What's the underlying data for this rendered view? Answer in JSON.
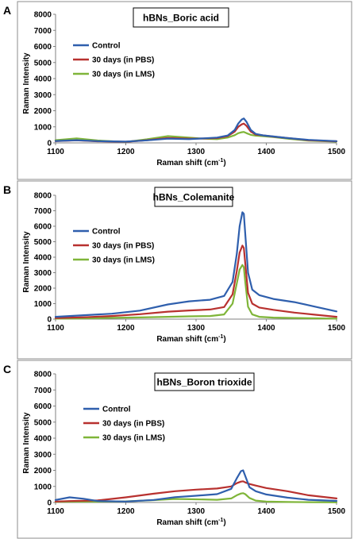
{
  "colors": {
    "control": "#2f5fad",
    "pbs": "#b8312f",
    "lms": "#7fb539",
    "frame": "#8c8c8c"
  },
  "chart_data": [
    {
      "panel": "A",
      "type": "line",
      "title": "hBNs_Boric acid",
      "xlabel": "Raman shift (cm",
      "xlabel_sup": "-1",
      "xlabel_close": ")",
      "ylabel": "Raman Intensity",
      "xlim": [
        1100,
        1500
      ],
      "ylim": [
        0,
        8000
      ],
      "xticks": [
        "1100",
        "1200",
        "1300",
        "1400",
        "1500"
      ],
      "yticks": [
        "0",
        "1000",
        "2000",
        "3000",
        "4000",
        "5000",
        "6000",
        "7000",
        "8000"
      ],
      "legend_position": "upper-left",
      "series": [
        {
          "name": "Control",
          "color_key": "control",
          "x": [
            1100,
            1130,
            1160,
            1200,
            1230,
            1260,
            1290,
            1310,
            1330,
            1345,
            1355,
            1360,
            1365,
            1368,
            1372,
            1378,
            1385,
            1395,
            1410,
            1430,
            1460,
            1500
          ],
          "y": [
            120,
            170,
            110,
            80,
            160,
            260,
            230,
            280,
            330,
            460,
            800,
            1200,
            1450,
            1520,
            1300,
            800,
            560,
            470,
            400,
            300,
            190,
            110
          ]
        },
        {
          "name": "30 days (in PBS)",
          "color_key": "pbs",
          "x": [
            1100,
            1130,
            1160,
            1200,
            1230,
            1260,
            1290,
            1310,
            1330,
            1345,
            1355,
            1360,
            1365,
            1368,
            1372,
            1378,
            1385,
            1395,
            1410,
            1430,
            1460,
            1500
          ],
          "y": [
            110,
            160,
            100,
            70,
            170,
            300,
            260,
            270,
            300,
            420,
            700,
            1000,
            1150,
            1200,
            1050,
            700,
            520,
            470,
            390,
            300,
            170,
            100
          ]
        },
        {
          "name": "30 days (in LMS)",
          "color_key": "lms",
          "x": [
            1100,
            1130,
            1160,
            1200,
            1230,
            1260,
            1290,
            1310,
            1330,
            1345,
            1355,
            1360,
            1365,
            1368,
            1372,
            1378,
            1385,
            1395,
            1410,
            1430,
            1460,
            1500
          ],
          "y": [
            170,
            280,
            150,
            60,
            220,
            420,
            330,
            260,
            230,
            330,
            480,
            600,
            660,
            680,
            600,
            500,
            450,
            420,
            360,
            260,
            140,
            80
          ]
        }
      ]
    },
    {
      "panel": "B",
      "type": "line",
      "title": "hBNs_Colemanite",
      "xlabel": "Raman shift (cm",
      "xlabel_sup": "-1",
      "xlabel_close": ")",
      "ylabel": "Raman Intensity",
      "xlim": [
        1100,
        1500
      ],
      "ylim": [
        0,
        8000
      ],
      "xticks": [
        "1100",
        "1200",
        "1300",
        "1400",
        "1500"
      ],
      "yticks": [
        "0",
        "1000",
        "2000",
        "3000",
        "4000",
        "5000",
        "6000",
        "7000",
        "8000"
      ],
      "legend_position": "upper-left",
      "series": [
        {
          "name": "Control",
          "color_key": "control",
          "x": [
            1100,
            1140,
            1180,
            1220,
            1260,
            1290,
            1320,
            1340,
            1352,
            1358,
            1362,
            1366,
            1368,
            1370,
            1374,
            1380,
            1390,
            1410,
            1440,
            1470,
            1500
          ],
          "y": [
            150,
            250,
            350,
            550,
            950,
            1150,
            1250,
            1500,
            2400,
            4200,
            6000,
            6900,
            6800,
            5500,
            3000,
            1900,
            1550,
            1300,
            1100,
            800,
            500
          ]
        },
        {
          "name": "30 days (in PBS)",
          "color_key": "pbs",
          "x": [
            1100,
            1140,
            1180,
            1220,
            1260,
            1290,
            1320,
            1340,
            1352,
            1358,
            1362,
            1366,
            1368,
            1370,
            1374,
            1380,
            1390,
            1410,
            1440,
            1470,
            1500
          ],
          "y": [
            70,
            120,
            200,
            320,
            480,
            560,
            620,
            780,
            1600,
            3100,
            4300,
            4750,
            4600,
            3600,
            1700,
            1000,
            750,
            600,
            420,
            280,
            150
          ]
        },
        {
          "name": "30 days (in LMS)",
          "color_key": "lms",
          "x": [
            1100,
            1140,
            1180,
            1220,
            1260,
            1290,
            1320,
            1340,
            1352,
            1358,
            1362,
            1366,
            1368,
            1370,
            1374,
            1380,
            1390,
            1410,
            1440,
            1470,
            1500
          ],
          "y": [
            30,
            50,
            80,
            110,
            150,
            180,
            200,
            300,
            1000,
            2300,
            3200,
            3500,
            3350,
            2400,
            800,
            300,
            150,
            100,
            70,
            50,
            30
          ]
        }
      ]
    },
    {
      "panel": "C",
      "type": "line",
      "title": "hBNs_Boron trioxide",
      "xlabel": "Raman shift (cm",
      "xlabel_sup": "-1",
      "xlabel_close": ")",
      "ylabel": "Raman Intensity",
      "xlim": [
        1100,
        1500
      ],
      "ylim": [
        0,
        8000
      ],
      "xticks": [
        "1100",
        "1200",
        "1300",
        "1400",
        "1500"
      ],
      "yticks": [
        "0",
        "1000",
        "2000",
        "3000",
        "4000",
        "5000",
        "6000",
        "7000",
        "8000"
      ],
      "legend_position": "upper-left",
      "series": [
        {
          "name": "Control",
          "color_key": "control",
          "x": [
            1100,
            1120,
            1140,
            1160,
            1200,
            1240,
            1270,
            1300,
            1330,
            1350,
            1358,
            1364,
            1367,
            1370,
            1376,
            1385,
            1400,
            1430,
            1460,
            1500
          ],
          "y": [
            160,
            320,
            230,
            90,
            60,
            160,
            330,
            420,
            520,
            850,
            1500,
            1950,
            2000,
            1650,
            950,
            700,
            500,
            300,
            170,
            100
          ]
        },
        {
          "name": "30 days (in PBS)",
          "color_key": "pbs",
          "x": [
            1100,
            1120,
            1140,
            1160,
            1200,
            1240,
            1270,
            1300,
            1330,
            1350,
            1358,
            1364,
            1367,
            1370,
            1376,
            1385,
            1400,
            1430,
            1460,
            1500
          ],
          "y": [
            60,
            90,
            110,
            130,
            320,
            550,
            700,
            800,
            870,
            1000,
            1200,
            1300,
            1320,
            1250,
            1150,
            1050,
            900,
            700,
            450,
            250
          ]
        },
        {
          "name": "30 days (in LMS)",
          "color_key": "lms",
          "x": [
            1100,
            1120,
            1140,
            1160,
            1200,
            1240,
            1270,
            1300,
            1330,
            1350,
            1358,
            1364,
            1367,
            1370,
            1376,
            1385,
            1400,
            1430,
            1460,
            1500
          ],
          "y": [
            40,
            50,
            60,
            50,
            70,
            150,
            220,
            200,
            170,
            250,
            450,
            560,
            580,
            520,
            280,
            120,
            60,
            30,
            20,
            10
          ]
        }
      ]
    }
  ]
}
